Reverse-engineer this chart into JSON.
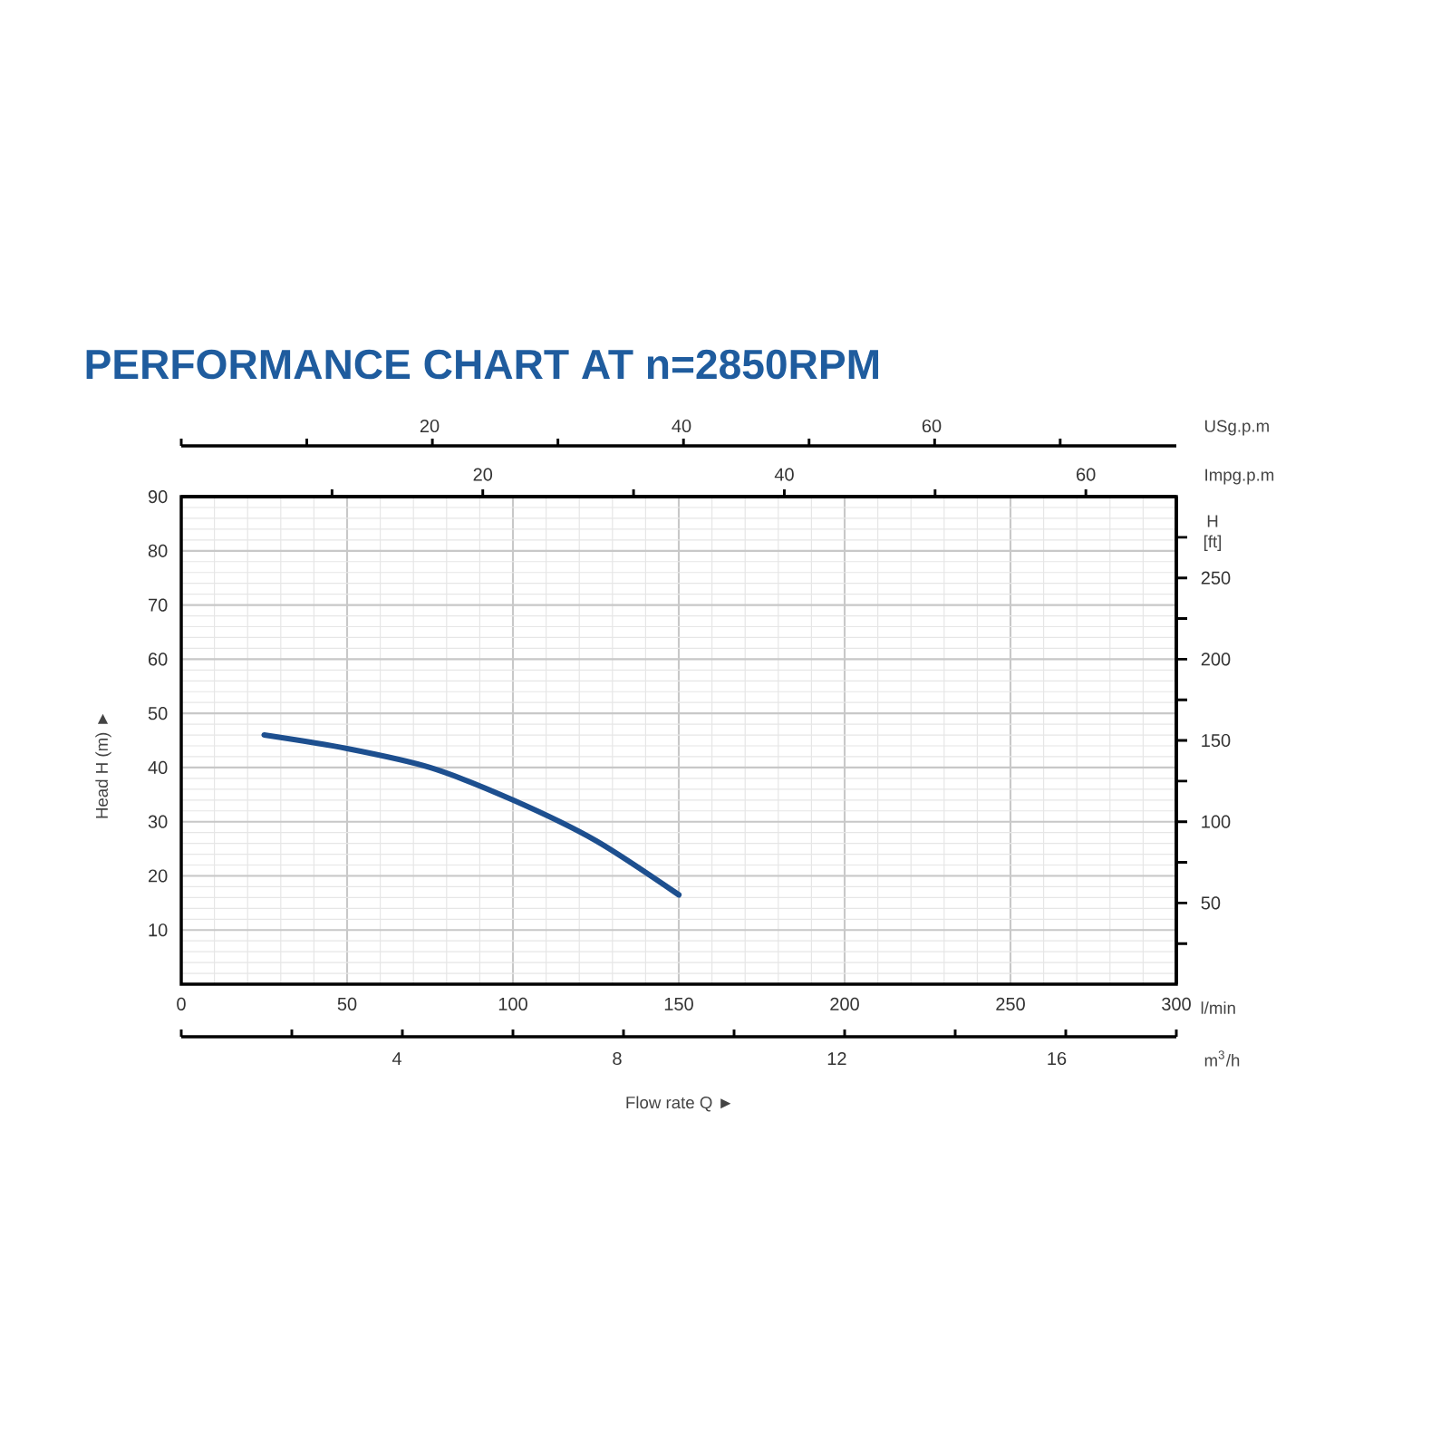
{
  "chart_data": {
    "type": "line",
    "title": "PERFORMANCE CHART AT n=2850RPM",
    "xlabel": "l/min",
    "ylabel": "Head H (m) ►",
    "y2label": "H [ft]",
    "x2label": "Impg.p.m",
    "annotations": [
      "20",
      "40",
      "60",
      "USg.p.m",
      "4",
      "8",
      "12",
      "16",
      "m$^{3}$/h",
      "Flow rate Q ►"
    ],
    "x": [
      25,
      50,
      75,
      100,
      125,
      150
    ],
    "series": [
      {
        "color": "#1d4f8f",
        "values": [
          46,
          43.5,
          40,
          34,
          26.5,
          16.5
        ]
      }
    ],
    "xlim": [
      0,
      300
    ],
    "xticks": [
      0,
      50,
      100,
      150,
      200,
      250,
      300
    ],
    "ylim": [
      0,
      90
    ],
    "yticks": [
      10,
      20,
      30,
      40,
      50,
      60,
      70,
      80,
      90
    ],
    "y2lim": [
      0,
      300
    ],
    "y2ticks": [
      {
        "value": 25,
        "label": null
      },
      50,
      {
        "value": 75,
        "label": null
      },
      100,
      {
        "value": 125,
        "label": null
      },
      150,
      {
        "value": 175,
        "label": null
      },
      200,
      {
        "value": 225,
        "label": null
      },
      250,
      {
        "value": 275,
        "label": null
      }
    ],
    "x2lim": [
      0,
      66
    ],
    "x2ticks": [
      {
        "value": 10,
        "label": null
      },
      20,
      {
        "value": 30,
        "label": null
      },
      40,
      {
        "value": 50,
        "label": null
      },
      60
    ],
    "grid": true,
    "marker": "none"
  }
}
